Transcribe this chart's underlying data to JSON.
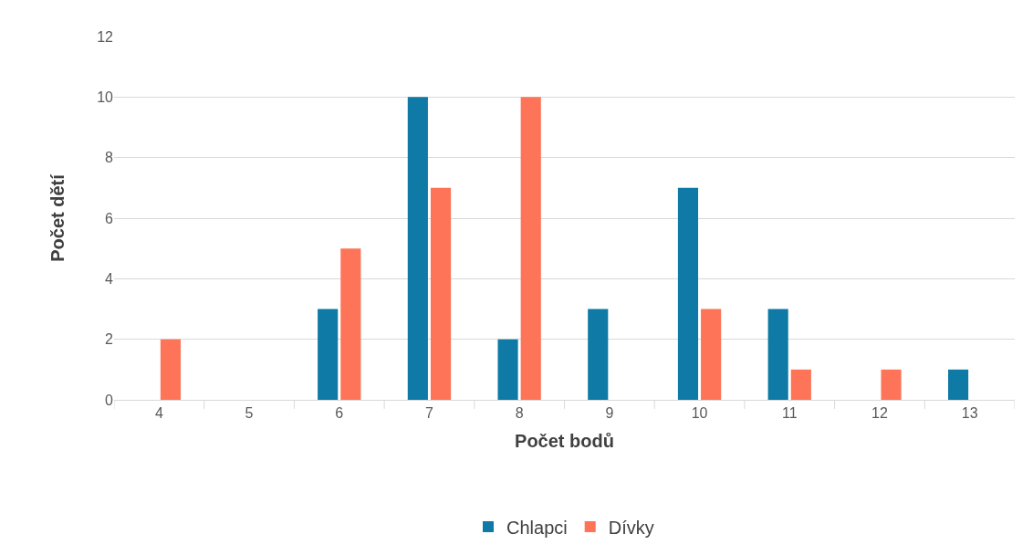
{
  "chart_data": {
    "type": "bar",
    "xlabel": "Počet bodů",
    "ylabel": "Počet dětí",
    "categories": [
      "4",
      "5",
      "6",
      "7",
      "8",
      "9",
      "10",
      "11",
      "12",
      "13"
    ],
    "series": [
      {
        "name": "Chlapci",
        "color": "#0f7aa5",
        "values": [
          0,
          0,
          3,
          10,
          2,
          3,
          7,
          3,
          0,
          1
        ]
      },
      {
        "name": "Dívky",
        "color": "#fd7458",
        "values": [
          2,
          0,
          5,
          7,
          10,
          0,
          3,
          1,
          1,
          0
        ]
      }
    ],
    "ylim": [
      0,
      12
    ],
    "yticks": [
      0,
      2,
      4,
      6,
      8,
      10,
      12
    ],
    "grid": "y",
    "legend": "bottom"
  }
}
